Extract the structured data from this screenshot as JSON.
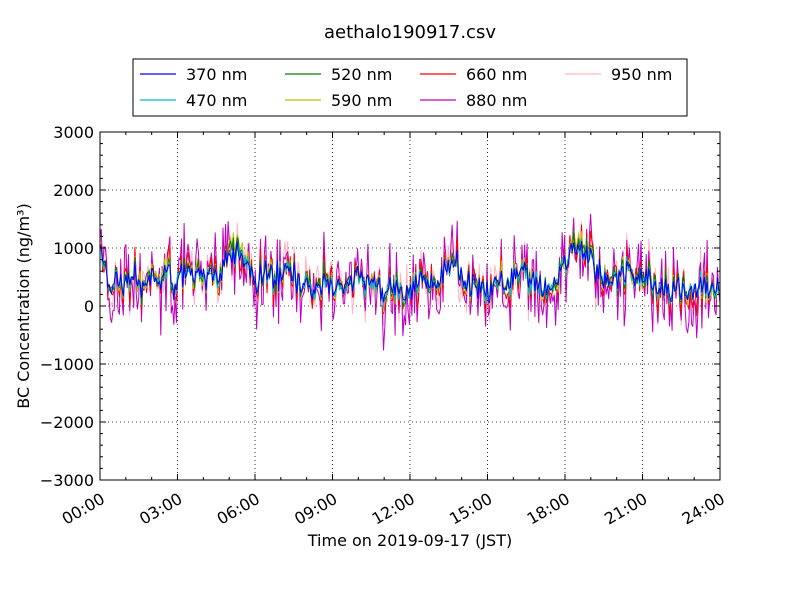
{
  "chart_data": {
    "type": "line",
    "title": "aethalo190917.csv",
    "xlabel": "Time on 2019-09-17 (JST)",
    "ylabel": "BC Concentration (ng/m³)",
    "ylim": [
      -3000,
      3000
    ],
    "xlim_hours": [
      0,
      24
    ],
    "grid": true,
    "legend_position": "top",
    "x_ticks": [
      "00:00",
      "03:00",
      "06:00",
      "09:00",
      "12:00",
      "15:00",
      "18:00",
      "21:00",
      "24:00"
    ],
    "x_tick_hours": [
      0,
      3,
      6,
      9,
      12,
      15,
      18,
      21,
      24
    ],
    "y_ticks": [
      -3000,
      -2000,
      -1000,
      0,
      1000,
      2000,
      3000
    ],
    "y_tick_labels": [
      "−3000",
      "−2000",
      "−1000",
      "0",
      "1000",
      "2000",
      "3000"
    ],
    "series": [
      {
        "name": "370 nm",
        "color": "#0000ff",
        "amp": 0.55,
        "values": [
          950,
          350,
          550,
          250,
          600,
          300,
          520,
          480,
          650,
          350,
          500,
          420,
          600,
          550,
          400,
          700,
          900,
          950,
          650,
          450,
          600,
          500,
          550,
          700,
          400,
          350,
          250,
          400,
          300,
          200,
          350,
          500,
          400,
          450,
          250,
          300,
          350,
          200,
          400,
          450,
          350,
          500,
          600,
          700,
          500,
          350,
          300,
          200,
          400,
          450,
          500,
          650,
          450,
          400,
          300,
          500,
          600,
          950,
          1000,
          800,
          700,
          500,
          400,
          600,
          550,
          400,
          500,
          350,
          300,
          250,
          300,
          350,
          400,
          300,
          250,
          300
        ]
      },
      {
        "name": "470 nm",
        "color": "#00bfbf",
        "amp": 0.55,
        "values": [
          900,
          330,
          530,
          240,
          580,
          290,
          500,
          470,
          640,
          340,
          490,
          410,
          590,
          540,
          390,
          690,
          880,
          940,
          640,
          440,
          590,
          490,
          540,
          690,
          390,
          340,
          240,
          390,
          290,
          190,
          340,
          490,
          390,
          440,
          240,
          290,
          340,
          190,
          390,
          440,
          340,
          490,
          590,
          690,
          490,
          340,
          290,
          190,
          390,
          440,
          490,
          640,
          440,
          390,
          290,
          490,
          590,
          940,
          980,
          790,
          690,
          490,
          390,
          590,
          540,
          390,
          490,
          340,
          290,
          240,
          290,
          340,
          390,
          290,
          240,
          290
        ]
      },
      {
        "name": "520 nm",
        "color": "#008000",
        "amp": 0.65,
        "values": [
          920,
          340,
          560,
          260,
          610,
          310,
          530,
          490,
          660,
          360,
          510,
          430,
          620,
          560,
          410,
          710,
          1100,
          1000,
          660,
          460,
          610,
          510,
          560,
          710,
          410,
          360,
          260,
          410,
          310,
          210,
          360,
          510,
          410,
          460,
          260,
          310,
          360,
          210,
          410,
          460,
          360,
          510,
          610,
          710,
          510,
          360,
          310,
          210,
          410,
          460,
          510,
          660,
          460,
          410,
          310,
          510,
          610,
          1000,
          1050,
          900,
          710,
          510,
          410,
          610,
          560,
          410,
          510,
          360,
          310,
          260,
          310,
          360,
          410,
          310,
          260,
          310
        ]
      },
      {
        "name": "590 nm",
        "color": "#bfbf00",
        "amp": 0.7,
        "values": [
          900,
          330,
          560,
          250,
          600,
          300,
          520,
          480,
          650,
          350,
          500,
          420,
          610,
          560,
          400,
          720,
          1200,
          1050,
          650,
          450,
          600,
          500,
          550,
          700,
          400,
          350,
          250,
          400,
          300,
          200,
          350,
          500,
          400,
          450,
          250,
          300,
          350,
          200,
          400,
          450,
          350,
          500,
          600,
          700,
          500,
          350,
          300,
          200,
          400,
          450,
          500,
          650,
          450,
          400,
          300,
          500,
          600,
          1000,
          1080,
          950,
          700,
          500,
          400,
          600,
          560,
          400,
          500,
          350,
          300,
          250,
          300,
          350,
          400,
          300,
          250,
          300
        ]
      },
      {
        "name": "660 nm",
        "color": "#ff0000",
        "amp": 1.0,
        "values": [
          880,
          320,
          540,
          240,
          590,
          290,
          510,
          470,
          640,
          340,
          490,
          410,
          600,
          550,
          390,
          700,
          900,
          950,
          640,
          440,
          590,
          490,
          540,
          690,
          390,
          340,
          240,
          390,
          290,
          190,
          340,
          490,
          390,
          440,
          240,
          290,
          340,
          190,
          390,
          440,
          340,
          490,
          590,
          690,
          490,
          340,
          290,
          190,
          390,
          440,
          490,
          640,
          440,
          390,
          290,
          490,
          590,
          950,
          1000,
          800,
          690,
          490,
          390,
          590,
          550,
          390,
          490,
          340,
          290,
          240,
          290,
          340,
          390,
          290,
          240,
          290
        ]
      },
      {
        "name": "880 nm",
        "color": "#bf00bf",
        "amp": 1.8,
        "values": [
          950,
          300,
          500,
          250,
          550,
          280,
          480,
          450,
          650,
          350,
          480,
          420,
          650,
          600,
          400,
          750,
          950,
          1000,
          650,
          400,
          600,
          500,
          600,
          750,
          350,
          300,
          150,
          350,
          250,
          150,
          300,
          450,
          300,
          400,
          200,
          250,
          300,
          100,
          350,
          400,
          250,
          450,
          550,
          650,
          400,
          250,
          200,
          100,
          350,
          400,
          450,
          600,
          400,
          350,
          200,
          450,
          550,
          950,
          950,
          750,
          650,
          450,
          350,
          550,
          500,
          350,
          450,
          300,
          250,
          200,
          250,
          300,
          350,
          250,
          200,
          250
        ]
      },
      {
        "name": "950 nm",
        "color": "#ffb6c1",
        "amp": 1.4,
        "values": [
          900,
          320,
          520,
          240,
          570,
          290,
          500,
          460,
          640,
          340,
          480,
          410,
          620,
          570,
          390,
          720,
          920,
          970,
          640,
          420,
          590,
          490,
          560,
          710,
          380,
          320,
          200,
          370,
          270,
          170,
          320,
          470,
          350,
          420,
          220,
          270,
          320,
          150,
          370,
          420,
          300,
          470,
          570,
          670,
          450,
          300,
          250,
          150,
          370,
          420,
          470,
          620,
          420,
          370,
          250,
          470,
          570,
          950,
          970,
          770,
          670,
          470,
          370,
          570,
          520,
          370,
          470,
          320,
          270,
          220,
          270,
          320,
          370,
          270,
          220,
          270
        ]
      }
    ]
  }
}
